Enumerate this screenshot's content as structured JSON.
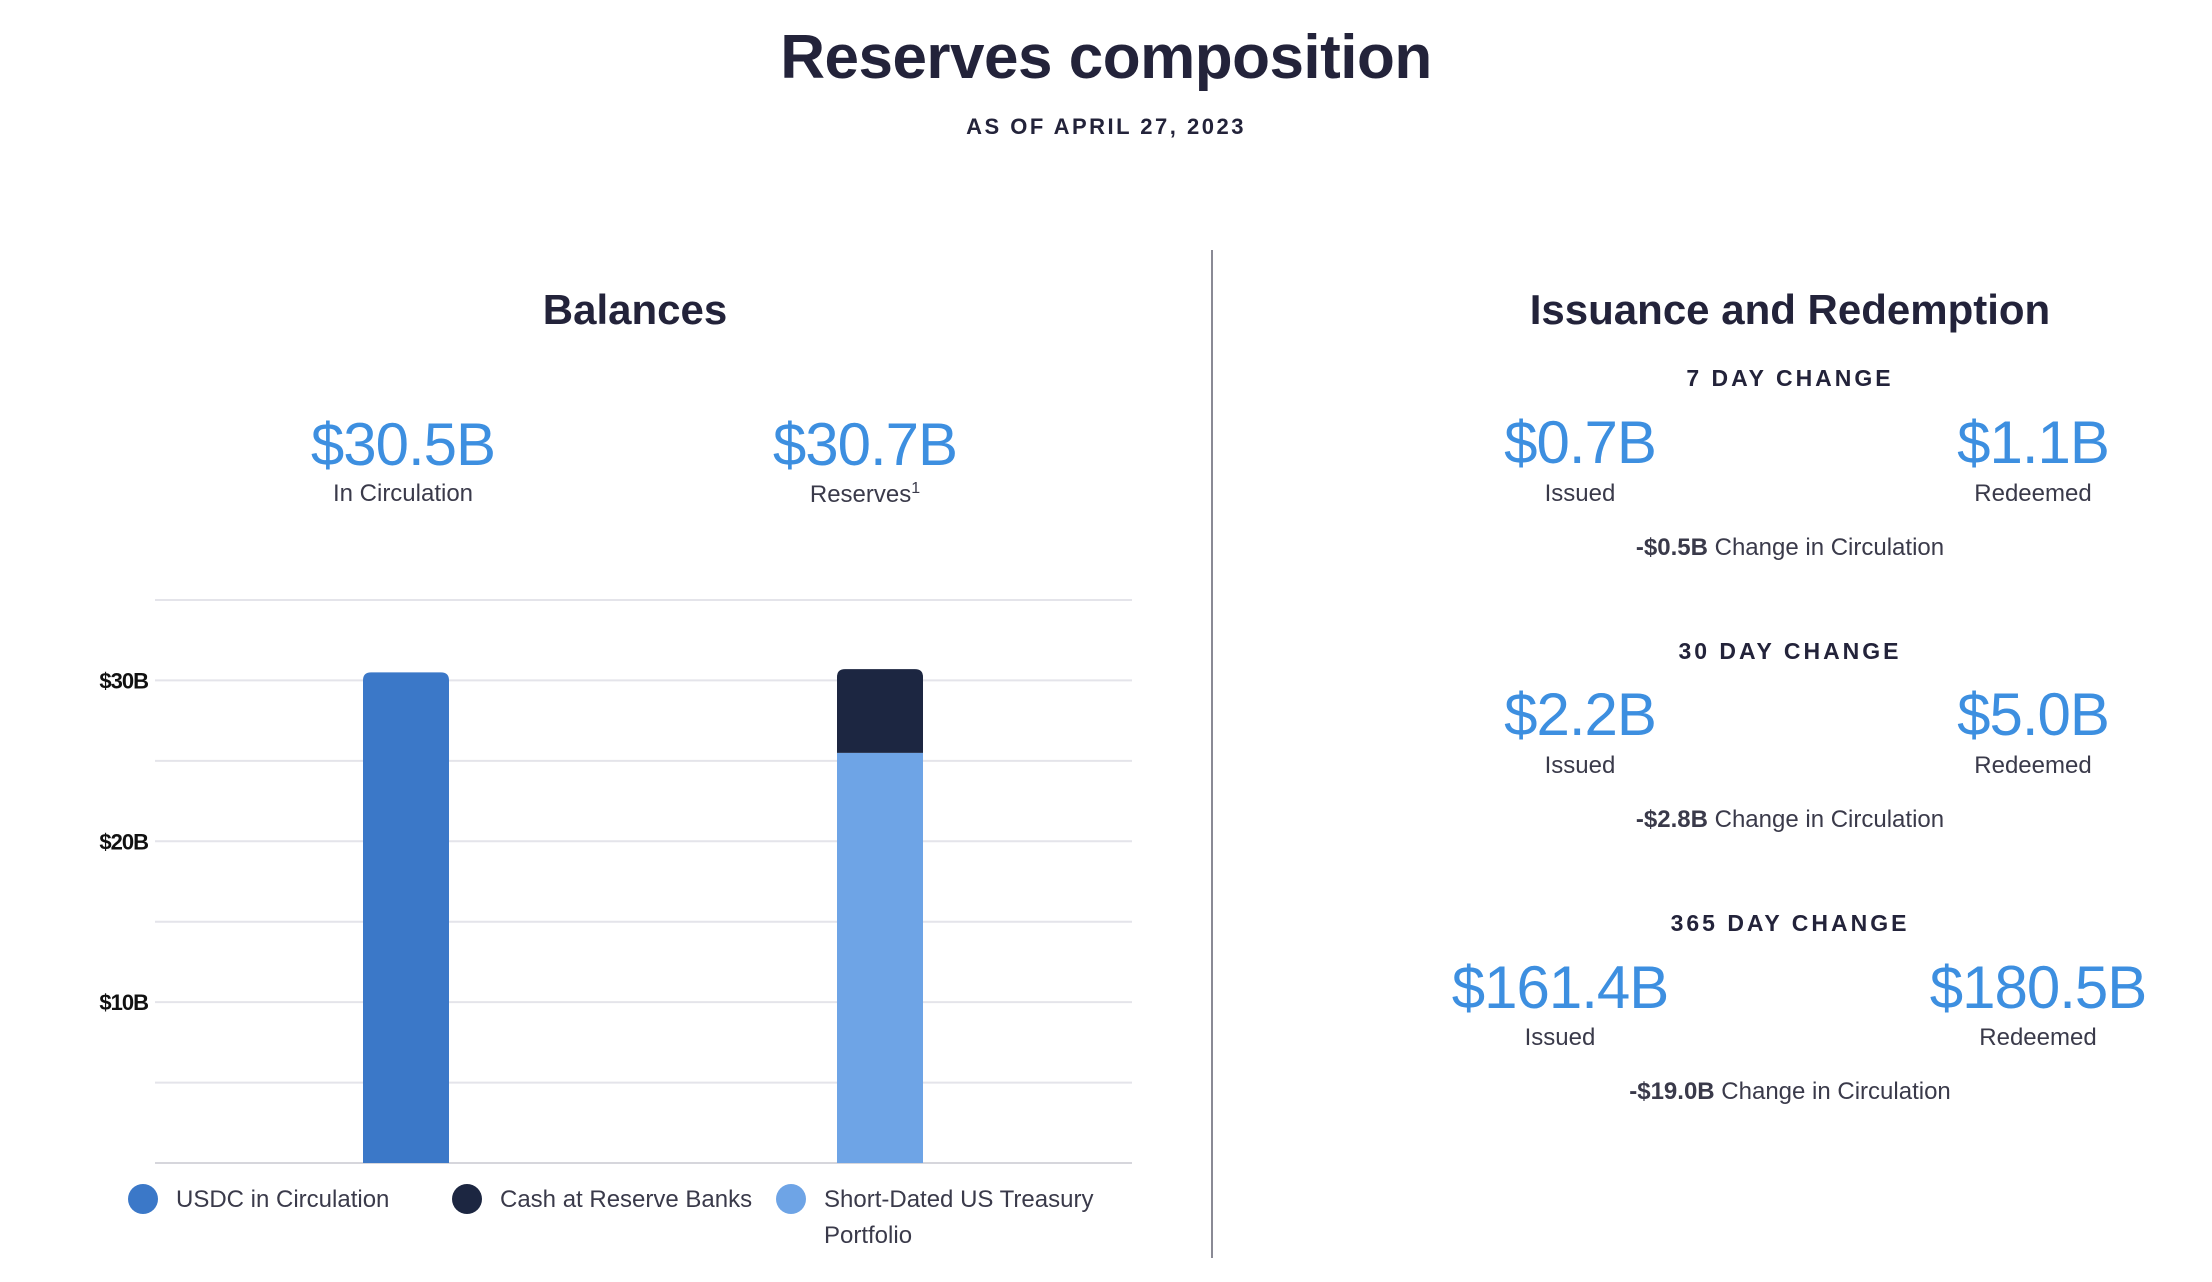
{
  "header": {
    "title": "Reserves composition",
    "subtitle": "AS OF APRIL 27, 2023"
  },
  "balances": {
    "title": "Balances",
    "circulation_value": "$30.5B",
    "circulation_label": "In Circulation",
    "reserves_value": "$30.7B",
    "reserves_label": "Reserves",
    "reserves_footnote": "1"
  },
  "issuance": {
    "title": "Issuance and Redemption",
    "sections": [
      {
        "heading": "7 DAY CHANGE",
        "issued": "$0.7B",
        "issued_label": "Issued",
        "redeemed": "$1.1B",
        "redeemed_label": "Redeemed",
        "change": "-$0.5B",
        "change_label": "Change in Circulation"
      },
      {
        "heading": "30 DAY CHANGE",
        "issued": "$2.2B",
        "issued_label": "Issued",
        "redeemed": "$5.0B",
        "redeemed_label": "Redeemed",
        "change": "-$2.8B",
        "change_label": "Change in Circulation"
      },
      {
        "heading": "365 DAY CHANGE",
        "issued": "$161.4B",
        "issued_label": "Issued",
        "redeemed": "$180.5B",
        "redeemed_label": "Redeemed",
        "change": "-$19.0B",
        "change_label": "Change in Circulation"
      }
    ]
  },
  "chart_data": {
    "type": "bar",
    "stacked": true,
    "categories": [
      "In Circulation",
      "Reserves"
    ],
    "series": [
      {
        "name": "USDC in Circulation",
        "color": "#3b78c8",
        "values": [
          30.5,
          0
        ]
      },
      {
        "name": "Short-Dated US Treasury Portfolio",
        "color": "#6ea4e6",
        "values": [
          0,
          25.5
        ]
      },
      {
        "name": "Cash at Reserve Banks",
        "color": "#1c2641",
        "values": [
          0,
          5.2
        ]
      }
    ],
    "ylim": [
      0,
      35
    ],
    "yticks": [
      10,
      20,
      30
    ],
    "ytick_labels": [
      "$10B",
      "$20B",
      "$30B"
    ],
    "grid": true,
    "legend": [
      {
        "label": "USDC in Circulation",
        "color": "#3b78c8"
      },
      {
        "label": "Cash at Reserve Banks",
        "color": "#1c2641"
      },
      {
        "label": "Short-Dated US Treasury Portfolio",
        "color": "#6ea4e6"
      }
    ]
  }
}
